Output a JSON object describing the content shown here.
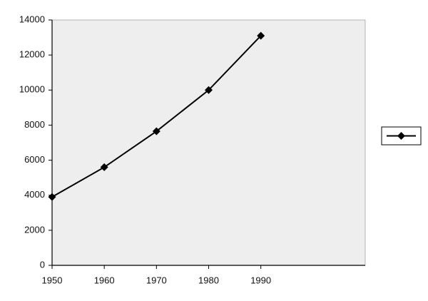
{
  "chart_data": {
    "type": "line",
    "x": [
      1950,
      1960,
      1970,
      1980,
      1990
    ],
    "series": [
      {
        "color": "#000000",
        "values": [
          3900,
          5600,
          7650,
          10000,
          13100
        ]
      }
    ],
    "xlim": [
      1950,
      2010
    ],
    "xticks": [
      1950,
      1960,
      1970,
      1980,
      1990
    ],
    "ylim": [
      0,
      14000
    ],
    "yticks": [
      0,
      2000,
      4000,
      6000,
      8000,
      10000,
      12000,
      14000
    ],
    "grid": false,
    "background": "#eeeeee"
  }
}
